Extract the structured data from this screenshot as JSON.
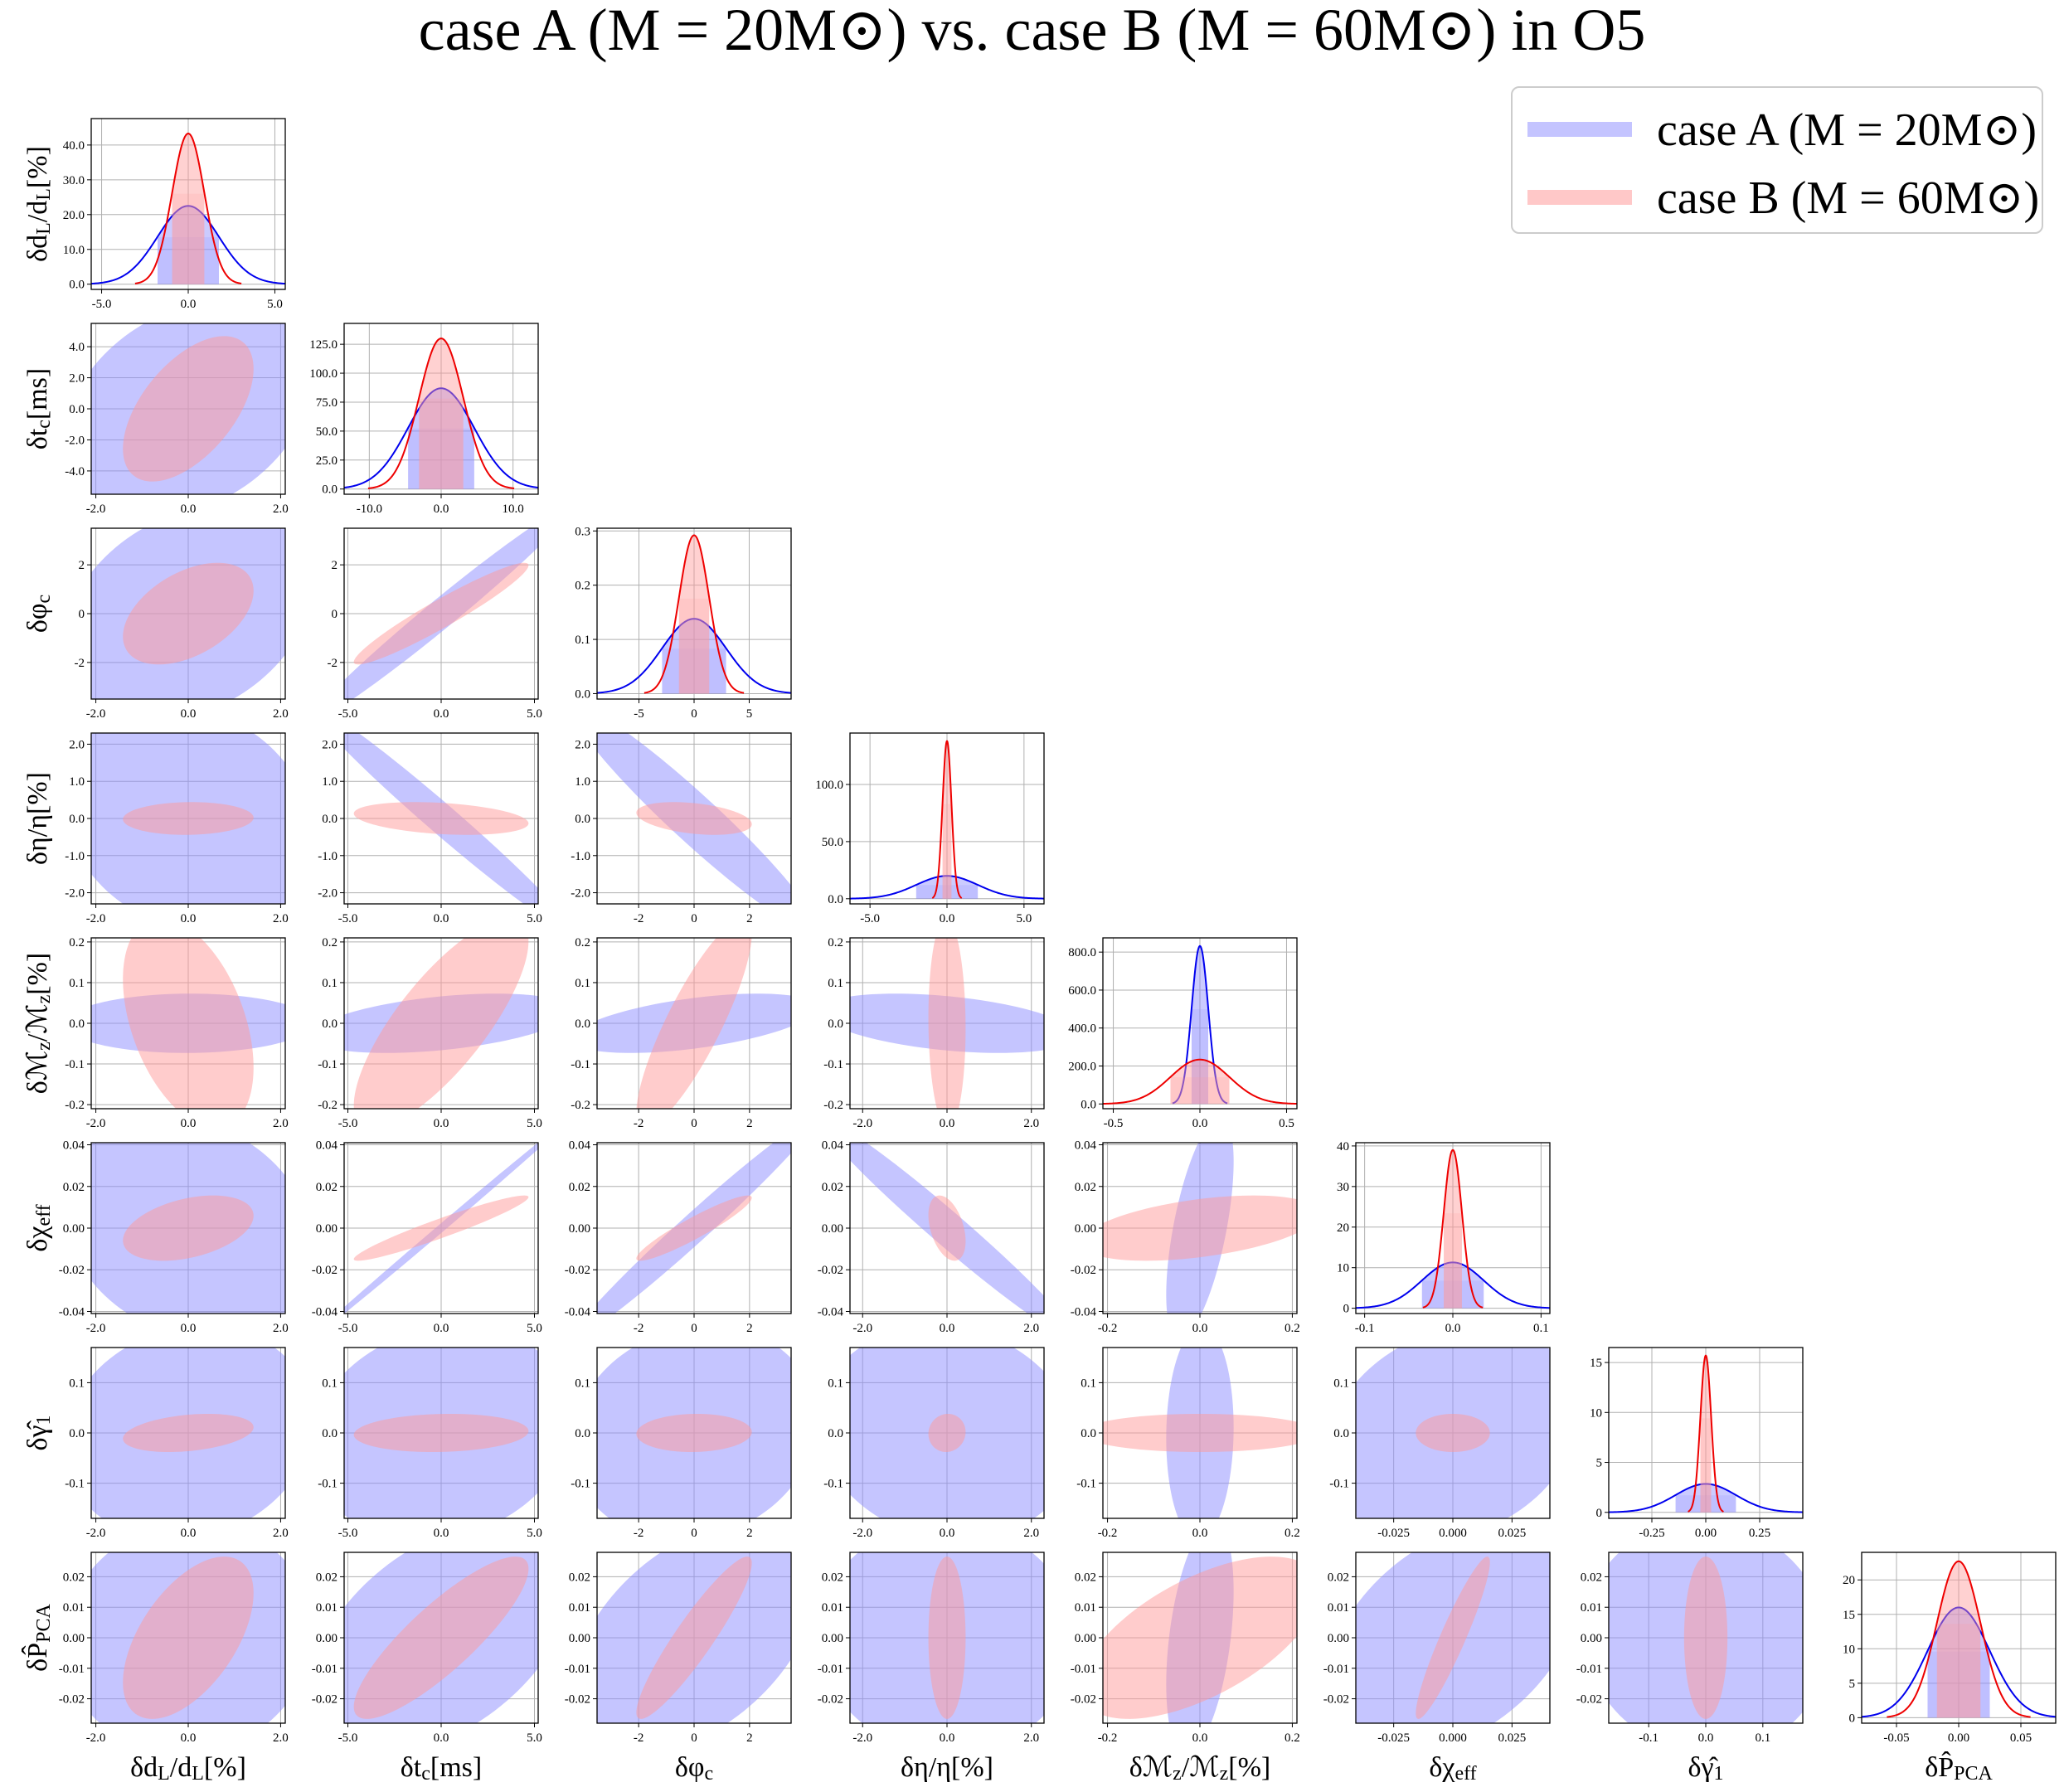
{
  "title": "case A (M = 20M⊙) vs. case B (M = 60M⊙) in O5",
  "legend": [
    {
      "label": "case A (M = 20M⊙)",
      "color": "#7b7bff"
    },
    {
      "label": "case B (M = 60M⊙)",
      "color": "#ff8080"
    }
  ],
  "chart_data": {
    "type": "corner",
    "colors": {
      "A_fill": "#8c8cff",
      "A_line": "#0000ee",
      "B_fill": "#ff9999",
      "B_line": "#ee0000"
    },
    "parameters": [
      {
        "name": "δdL/dL[%]",
        "sigma_A": 1.77,
        "sigma_B": 0.93,
        "peak_A": 22.5,
        "peak_B": 43.3,
        "xlim": [
          -5.6,
          5.6
        ],
        "xticks": [
          -5.0,
          0.0,
          5.0
        ],
        "xticklabels": [
          "-5.0",
          "0.0",
          "5.0"
        ],
        "pdf_ylim": [
          -1.5,
          47.6
        ],
        "pdf_yticks": [
          0,
          10,
          20,
          30,
          40
        ],
        "pdf_yticklabels": [
          "0.0",
          "10.0",
          "20.0",
          "30.0",
          "40.0"
        ],
        "lim": [
          -2.1,
          2.1
        ],
        "ticks": [
          -2,
          0,
          2
        ],
        "ticklabels": [
          "-2.0",
          "0.0",
          "2.0"
        ]
      },
      {
        "name": "δtc[ms]",
        "sigma_A": 4.6,
        "sigma_B": 3.08,
        "peak_A": 87,
        "peak_B": 130,
        "xlim": [
          -13.5,
          13.5
        ],
        "xticks": [
          -10,
          0,
          10
        ],
        "xticklabels": [
          "-10.0",
          "0.0",
          "10.0"
        ],
        "pdf_ylim": [
          -4.5,
          143
        ],
        "pdf_yticks": [
          0,
          25,
          50,
          75,
          100,
          125
        ],
        "pdf_yticklabels": [
          "0.0",
          "25.0",
          "50.0",
          "75.0",
          "100.0",
          "125.0"
        ],
        "lim": [
          -5.2,
          5.2
        ],
        "ticks": [
          -5,
          0,
          5
        ],
        "ticklabels": [
          "-5.0",
          "0.0",
          "5.0"
        ],
        "lim_y": [
          -5.5,
          5.5
        ],
        "ticks_y": [
          -4,
          -2,
          0,
          2,
          4
        ],
        "ticklabels_y": [
          "-4.0",
          "-2.0",
          "0.0",
          "2.0",
          "4.0"
        ]
      },
      {
        "name": "δφc",
        "sigma_A": 2.9,
        "sigma_B": 1.37,
        "peak_A": 0.138,
        "peak_B": 0.292,
        "xlim": [
          -8.8,
          8.8
        ],
        "xticks": [
          -5,
          0,
          5
        ],
        "xticklabels": [
          "-5",
          "0",
          "5"
        ],
        "pdf_ylim": [
          -0.01,
          0.305
        ],
        "pdf_yticks": [
          0,
          0.1,
          0.2,
          0.3
        ],
        "pdf_yticklabels": [
          "0.0",
          "0.1",
          "0.2",
          "0.3"
        ],
        "lim": [
          -3.5,
          3.5
        ],
        "ticks": [
          -2,
          0,
          2
        ],
        "ticklabels": [
          "-2",
          "0",
          "2"
        ]
      },
      {
        "name": "δη/η[%]",
        "sigma_A": 2.0,
        "sigma_B": 0.29,
        "peak_A": 20,
        "peak_B": 138,
        "xlim": [
          -6.3,
          6.3
        ],
        "xticks": [
          -5,
          0,
          5
        ],
        "xticklabels": [
          "-5.0",
          "0.0",
          "5.0"
        ],
        "pdf_ylim": [
          -4.5,
          145
        ],
        "pdf_yticks": [
          0,
          50,
          100
        ],
        "pdf_yticklabels": [
          "0.0",
          "50.0",
          "100.0"
        ],
        "lim": [
          -2.3,
          2.3
        ],
        "ticks": [
          -2,
          -1,
          0,
          1,
          2
        ],
        "ticklabels": [
          "-2.0",
          "-1.0",
          "0.0",
          "1.0",
          "2.0"
        ],
        "ticks_x": [
          -2,
          0,
          2
        ],
        "ticklabels_x": [
          "-2.0",
          "0.0",
          "2.0"
        ]
      },
      {
        "name": "δMz/Mz[%]",
        "sigma_A": 0.048,
        "sigma_B": 0.17,
        "peak_A": 832,
        "peak_B": 234,
        "xlim": [
          -0.56,
          0.56
        ],
        "xticks": [
          -0.5,
          0,
          0.5
        ],
        "xticklabels": [
          "-0.5",
          "0.0",
          "0.5"
        ],
        "pdf_ylim": [
          -25,
          875
        ],
        "pdf_yticks": [
          0,
          200,
          400,
          600,
          800
        ],
        "pdf_yticklabels": [
          "0.0",
          "200.0",
          "400.0",
          "600.0",
          "800.0"
        ],
        "lim": [
          -0.21,
          0.21
        ],
        "ticks": [
          -0.2,
          -0.1,
          0,
          0.1,
          0.2
        ],
        "ticklabels": [
          "-0.2",
          "-0.1",
          "0.0",
          "0.1",
          "0.2"
        ],
        "ticks_x": [
          -0.2,
          0,
          0.2
        ],
        "ticklabels_x": [
          "-0.2",
          "0.0",
          "0.2"
        ]
      },
      {
        "name": "δχeff",
        "sigma_A": 0.035,
        "sigma_B": 0.0103,
        "peak_A": 11.3,
        "peak_B": 39,
        "xlim": [
          -0.11,
          0.11
        ],
        "xticks": [
          -0.1,
          0,
          0.1
        ],
        "xticklabels": [
          "-0.1",
          "0.0",
          "0.1"
        ],
        "pdf_ylim": [
          -1.3,
          40.8
        ],
        "pdf_yticks": [
          0,
          10,
          20,
          30,
          40
        ],
        "pdf_yticklabels": [
          "0",
          "10",
          "20",
          "30",
          "40"
        ],
        "lim": [
          -0.041,
          0.041
        ],
        "ticks": [
          -0.04,
          -0.02,
          0,
          0.02,
          0.04
        ],
        "ticklabels": [
          "-0.04",
          "-0.02",
          "0.00",
          "0.02",
          "0.04"
        ],
        "ticks_x": [
          -0.025,
          0,
          0.025
        ],
        "ticklabels_x": [
          "-0.025",
          "0.000",
          "0.025"
        ]
      },
      {
        "name": "δγ̂1",
        "sigma_A": 0.14,
        "sigma_B": 0.025,
        "peak_A": 2.85,
        "peak_B": 15.7,
        "xlim": [
          -0.45,
          0.45
        ],
        "xticks": [
          -0.25,
          0,
          0.25
        ],
        "xticklabels": [
          "-0.25",
          "0.00",
          "0.25"
        ],
        "pdf_ylim": [
          -0.6,
          16.5
        ],
        "pdf_yticks": [
          0,
          5,
          10,
          15
        ],
        "pdf_yticklabels": [
          "0",
          "5",
          "10",
          "15"
        ],
        "lim": [
          -0.17,
          0.17
        ],
        "ticks": [
          -0.1,
          0,
          0.1
        ],
        "ticklabels": [
          "-0.1",
          "0.0",
          "0.1"
        ]
      },
      {
        "name": "δP̂PCA",
        "sigma_A": 0.025,
        "sigma_B": 0.0175,
        "peak_A": 16,
        "peak_B": 22.7,
        "xlim": [
          -0.078,
          0.078
        ],
        "xticks": [
          -0.05,
          0,
          0.05
        ],
        "xticklabels": [
          "-0.05",
          "0.00",
          "0.05"
        ],
        "pdf_ylim": [
          -0.8,
          24
        ],
        "pdf_yticks": [
          0,
          5,
          10,
          15,
          20
        ],
        "pdf_yticklabels": [
          "0",
          "5",
          "10",
          "15",
          "20"
        ],
        "lim": [
          -0.028,
          0.028
        ],
        "ticks": [
          -0.02,
          -0.01,
          0,
          0.01,
          0.02
        ],
        "ticklabels": [
          "-0.02",
          "-0.01",
          "0.00",
          "0.01",
          "0.02"
        ]
      }
    ],
    "correlations_A": [
      [],
      [
        0.3
      ],
      [
        0.28,
        0.985
      ],
      [
        -0.16,
        -0.985,
        -0.96
      ],
      [
        0.02,
        0.42,
        0.52,
        -0.4
      ],
      [
        -0.18,
        0.999,
        0.985,
        -0.98,
        0.6
      ],
      [
        0.12,
        0.14,
        0.12,
        -0.1,
        0.05,
        0.2
      ],
      [
        0.05,
        0.45,
        0.45,
        -0.02,
        0.4,
        0.4,
        -0.05
      ]
    ],
    "correlations_B": [
      [],
      [
        0.55
      ],
      [
        0.45,
        0.95
      ],
      [
        0.05,
        -0.3,
        -0.35
      ],
      [
        -0.42,
        0.78,
        0.85,
        -0.05
      ],
      [
        0.38,
        0.95,
        0.93,
        -0.4,
        0.45
      ],
      [
        0.3,
        0.1,
        0.05,
        0.05,
        0.0,
        0.0
      ],
      [
        0.55,
        0.85,
        0.92,
        0.0,
        0.6,
        0.93,
        0.0
      ]
    ]
  }
}
